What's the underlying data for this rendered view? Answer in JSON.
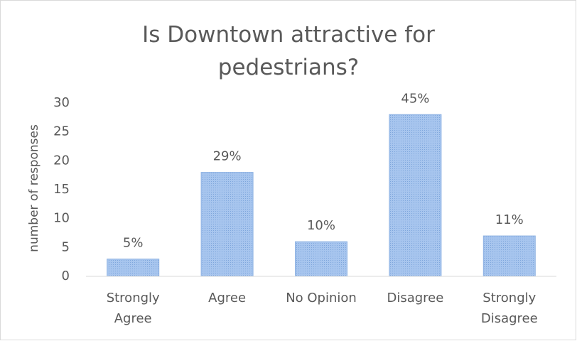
{
  "chart_data": {
    "type": "bar",
    "title": "Is Downtown attractive for pedestrians?",
    "ylabel": "number of responses",
    "categories": [
      "Strongly Agree",
      "Agree",
      "No Opinion",
      "Disagree",
      "Strongly Disagree"
    ],
    "values": [
      3,
      18,
      6,
      28,
      7
    ],
    "percent_labels": [
      "5%",
      "29%",
      "10%",
      "45%",
      "11%"
    ],
    "color": "#a7c5ee",
    "ylim": [
      0,
      30
    ],
    "yticks": [
      0,
      5,
      10,
      15,
      20,
      25,
      30
    ],
    "grid": false
  }
}
